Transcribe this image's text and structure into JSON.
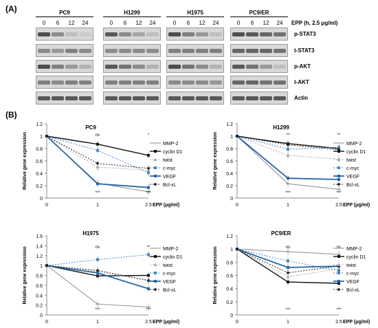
{
  "panel_a_label": "(A)",
  "panel_b_label": "(B)",
  "blot": {
    "cell_lines": [
      "PC9",
      "H1299",
      "H1975",
      "PC9/ER"
    ],
    "timepoints": [
      "0",
      "6",
      "12",
      "24"
    ],
    "treatment_label": "EPP (h, 2.5 μg/ml)",
    "rows": [
      "p-STAT3",
      "t-STAT3",
      "p-AKT",
      "t-AKT",
      "Actin"
    ],
    "intensity": {
      "p-STAT3": [
        [
          0.3,
          0.55,
          0.75,
          0.8
        ],
        [
          0.35,
          0.55,
          0.65,
          0.75
        ],
        [
          0.3,
          0.5,
          0.6,
          0.75
        ],
        [
          0.3,
          0.35,
          0.4,
          0.45
        ]
      ],
      "t-STAT3": [
        [
          0.55,
          0.6,
          0.5,
          0.55
        ],
        [
          0.55,
          0.55,
          0.55,
          0.55
        ],
        [
          0.5,
          0.5,
          0.5,
          0.5
        ],
        [
          0.4,
          0.4,
          0.4,
          0.45
        ]
      ],
      "p-AKT": [
        [
          0.3,
          0.5,
          0.6,
          0.7
        ],
        [
          0.35,
          0.45,
          0.55,
          0.7
        ],
        [
          0.3,
          0.45,
          0.55,
          0.7
        ],
        [
          0.35,
          0.45,
          0.6,
          0.75
        ]
      ],
      "t-AKT": [
        [
          0.5,
          0.55,
          0.5,
          0.5
        ],
        [
          0.5,
          0.5,
          0.5,
          0.5
        ],
        [
          0.55,
          0.55,
          0.55,
          0.6
        ],
        [
          0.4,
          0.4,
          0.45,
          0.45
        ]
      ],
      "Actin": [
        [
          0.35,
          0.35,
          0.35,
          0.35
        ],
        [
          0.35,
          0.35,
          0.35,
          0.35
        ],
        [
          0.35,
          0.35,
          0.35,
          0.35
        ],
        [
          0.35,
          0.35,
          0.35,
          0.35
        ]
      ]
    }
  },
  "chart_data": [
    {
      "type": "line",
      "title": "PC9",
      "x": [
        0,
        1,
        2.5
      ],
      "xlabel": "EPP (μg/ml)",
      "ylabel": "Relative gene expression",
      "ylim": [
        0,
        1.2
      ],
      "yticks": [
        "0",
        "0.2",
        "0.4",
        "0.6",
        "0.8",
        "1",
        "1.2"
      ],
      "xticks": [
        "0",
        "1",
        "2.5"
      ],
      "series": [
        {
          "name": "MMP-2",
          "values": [
            1,
            0.24,
            0.1
          ]
        },
        {
          "name": "cyclin D1",
          "values": [
            1,
            0.87,
            0.69
          ]
        },
        {
          "name": "twist",
          "values": [
            1,
            0.5,
            0.45
          ]
        },
        {
          "name": "c-myc",
          "values": [
            1,
            0.77,
            0.41
          ]
        },
        {
          "name": "VEGF",
          "values": [
            1,
            0.23,
            0.17
          ]
        },
        {
          "name": "Bcl-xL",
          "values": [
            1,
            0.56,
            0.48
          ]
        }
      ],
      "annotations": [
        {
          "x": 1,
          "label": "ns"
        },
        {
          "x": 1,
          "label": "***"
        },
        {
          "x": 2.5,
          "label": "*"
        },
        {
          "x": 2.5,
          "label": "***"
        }
      ]
    },
    {
      "type": "line",
      "title": "H1299",
      "x": [
        0,
        1,
        2.5
      ],
      "xlabel": "EPP (μg/ml)",
      "ylabel": "Relative gene expression",
      "ylim": [
        0,
        1.2
      ],
      "yticks": [
        "0",
        "0.2",
        "0.4",
        "0.6",
        "0.8",
        "1",
        "1.2"
      ],
      "xticks": [
        "0",
        "1",
        "2.5"
      ],
      "series": [
        {
          "name": "MMP-2",
          "values": [
            1,
            0.23,
            0.14
          ]
        },
        {
          "name": "cyclin D1",
          "values": [
            1,
            0.88,
            0.8
          ]
        },
        {
          "name": "twist",
          "values": [
            1,
            0.69,
            0.63
          ]
        },
        {
          "name": "c-myc",
          "values": [
            1,
            0.79,
            0.82
          ]
        },
        {
          "name": "VEGF",
          "values": [
            1,
            0.32,
            0.3
          ]
        },
        {
          "name": "Bcl-xL",
          "values": [
            1,
            0.86,
            0.78
          ]
        }
      ],
      "annotations": [
        {
          "x": 1,
          "label": "**"
        },
        {
          "x": 1,
          "label": "***"
        },
        {
          "x": 2.5,
          "label": "**"
        },
        {
          "x": 2.5,
          "label": "***"
        }
      ]
    },
    {
      "type": "line",
      "title": "H1975",
      "x": [
        0,
        1,
        2.5
      ],
      "xlabel": "EPP (μg/ml)",
      "ylabel": "Relative gene expression",
      "ylim": [
        0,
        1.6
      ],
      "yticks": [
        "0",
        "0.2",
        "0.4",
        "0.6",
        "0.8",
        "1",
        "1.2",
        "1.4",
        "1.6"
      ],
      "xticks": [
        "0",
        "1",
        "2.5"
      ],
      "series": [
        {
          "name": "MMP-2",
          "values": [
            1,
            0.22,
            0.16
          ]
        },
        {
          "name": "cyclin D1",
          "values": [
            1,
            0.79,
            0.8
          ]
        },
        {
          "name": "twist",
          "values": [
            1,
            0.88,
            0.69
          ]
        },
        {
          "name": "c-myc",
          "values": [
            1,
            1.12,
            1.22
          ]
        },
        {
          "name": "VEGF",
          "values": [
            1,
            0.85,
            0.53
          ]
        },
        {
          "name": "Bcl-xL",
          "values": [
            1,
            0.9,
            0.7
          ]
        }
      ],
      "annotations": [
        {
          "x": 1,
          "label": "ns"
        },
        {
          "x": 1,
          "label": "***"
        },
        {
          "x": 2.5,
          "label": "**"
        },
        {
          "x": 2.5,
          "label": "***"
        }
      ]
    },
    {
      "type": "line",
      "title": "PC9/ER",
      "x": [
        0,
        1,
        2.5
      ],
      "xlabel": "EPP (μg/ml)",
      "ylabel": "Relative gene expression",
      "ylim": [
        0,
        1.2
      ],
      "yticks": [
        "0",
        "0.2",
        "0.4",
        "0.6",
        "0.8",
        "1",
        "1.2"
      ],
      "xticks": [
        "0",
        "1",
        "2.5"
      ],
      "series": [
        {
          "name": "MMP-2",
          "values": [
            1,
            0.96,
            0.92
          ]
        },
        {
          "name": "cyclin D1",
          "values": [
            1,
            0.5,
            0.48
          ]
        },
        {
          "name": "twist",
          "values": [
            1,
            0.58,
            0.7
          ]
        },
        {
          "name": "c-myc",
          "values": [
            1,
            0.82,
            0.67
          ]
        },
        {
          "name": "VEGF",
          "values": [
            1,
            0.72,
            0.74
          ]
        },
        {
          "name": "Bcl-xL",
          "values": [
            1,
            0.64,
            0.74
          ]
        }
      ],
      "annotations": [
        {
          "x": 1,
          "label": "ns"
        },
        {
          "x": 1,
          "label": "***"
        },
        {
          "x": 2.5,
          "label": "ns"
        },
        {
          "x": 2.5,
          "label": "***"
        }
      ]
    }
  ],
  "legend_colors": {
    "MMP-2": "#8c8c8c",
    "cyclin D1": "#111111",
    "twist": "#a8a8a8",
    "c-myc": "#3f86c8",
    "VEGF": "#2466a8",
    "Bcl-xL": "#222222"
  }
}
